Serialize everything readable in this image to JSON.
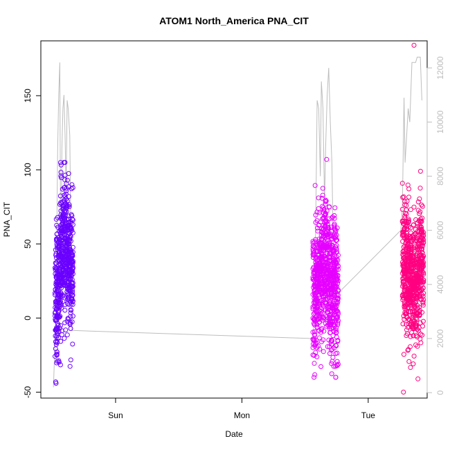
{
  "chart_data": {
    "type": "scatter",
    "title": "ATOM1 North_America PNA_CIT",
    "xlabel": "Date",
    "ylabel": "PNA_CIT",
    "x_ticks": [
      "Sun",
      "Mon",
      "Tue"
    ],
    "y_ticks": [
      -50,
      0,
      50,
      100,
      150
    ],
    "y_right_ticks": [
      0,
      2000,
      4000,
      6000,
      8000,
      10000,
      12000
    ],
    "xlim_hours": [
      -14.2,
      59.2
    ],
    "ylim": [
      -54,
      187
    ],
    "ylim_right": [
      -200,
      13000
    ],
    "grid": false,
    "legend": "none",
    "colors": {
      "cluster1": "#6a00ff",
      "cluster2": "#e600ff",
      "cluster3": "#ff0080",
      "line": "#bdbdbd",
      "right_axis": "#bdbdbd"
    },
    "series": [
      {
        "color": "#6a00ff",
        "x_hours_from_sun": [
          -11.3,
          -11.0,
          -10.6,
          -10.2,
          -9.8,
          -9.4,
          -9.0,
          -8.7,
          -8.3
        ],
        "y_center": [
          10,
          20,
          35,
          45,
          50,
          45,
          40,
          30,
          35
        ],
        "y_min": -44,
        "y_max": 105
      },
      {
        "color": "#e600ff",
        "x_hours_from_sun": [
          37.7,
          38.1,
          38.5,
          38.9,
          39.3,
          39.7,
          40.1,
          40.5,
          40.9,
          41.3,
          41.7,
          42.1
        ],
        "y_center": [
          15,
          20,
          25,
          30,
          35,
          40,
          30,
          25,
          20,
          20,
          25,
          15
        ],
        "y_min": -40,
        "y_max": 107
      },
      {
        "color": "#ff0080",
        "x_hours_from_sun": [
          54.7,
          55.1,
          55.5,
          55.9,
          56.3,
          56.7,
          57.1,
          57.5,
          57.9,
          58.3
        ],
        "y_center": [
          40,
          35,
          30,
          25,
          20,
          20,
          20,
          25,
          30,
          35
        ],
        "y_min": -50,
        "y_max": 184
      }
    ],
    "line_series": {
      "x_hours_from_sun": [
        -11.8,
        -11.3,
        -11.0,
        -10.8,
        -10.6,
        -10.4,
        -10.2,
        -10.0,
        -9.8,
        -9.6,
        -9.4,
        -9.2,
        -9.0,
        -8.7,
        -8.3,
        37.5,
        37.8,
        38.1,
        38.3,
        38.6,
        38.9,
        39.1,
        39.4,
        39.7,
        39.9,
        40.2,
        40.5,
        40.8,
        41.1,
        41.5,
        41.9,
        54.2,
        54.5,
        54.8,
        55.0,
        55.3,
        55.6,
        55.9,
        56.3,
        56.7,
        57.0,
        57.3,
        57.6,
        57.9,
        58.2
      ],
      "y_right": [
        200,
        3000,
        9000,
        11000,
        12200,
        3500,
        9000,
        10500,
        11000,
        9500,
        7500,
        10800,
        10500,
        9500,
        2300,
        2000,
        3000,
        7500,
        10800,
        10500,
        8000,
        11500,
        10500,
        7000,
        9000,
        11000,
        12000,
        10000,
        8500,
        3800,
        3600,
        6000,
        7000,
        10900,
        8500,
        9500,
        10500,
        10000,
        12200,
        12200,
        12200,
        12400,
        12400,
        12400,
        10800
      ]
    }
  }
}
